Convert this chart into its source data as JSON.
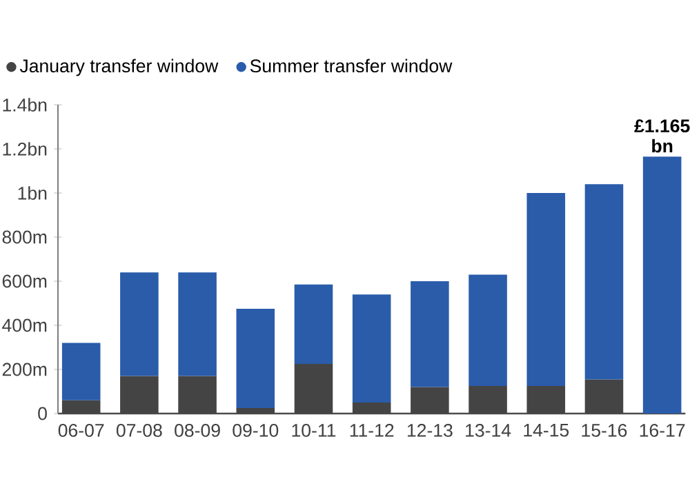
{
  "chart_data": {
    "type": "bar",
    "stacked": true,
    "categories": [
      "06-07",
      "07-08",
      "08-09",
      "09-10",
      "10-11",
      "11-12",
      "12-13",
      "13-14",
      "14-15",
      "15-16",
      "16-17"
    ],
    "series": [
      {
        "name": "January transfer window",
        "color": "#444444",
        "values": [
          60000000,
          170000000,
          170000000,
          25000000,
          225000000,
          50000000,
          120000000,
          125000000,
          125000000,
          155000000,
          null
        ]
      },
      {
        "name": "Summer transfer window",
        "color": "#2a5caa",
        "values": [
          260000000,
          470000000,
          470000000,
          450000000,
          360000000,
          490000000,
          480000000,
          505000000,
          875000000,
          885000000,
          1165000000
        ]
      }
    ],
    "ylim": [
      0,
      1400000000
    ],
    "yticks": [
      0,
      {
        "value": 200000000,
        "label": "200m"
      },
      {
        "value": 400000000,
        "label": "400m"
      },
      {
        "value": 600000000,
        "label": "600m"
      },
      {
        "value": 800000000,
        "label": "800m"
      },
      {
        "value": 1000000000,
        "label": "1bn"
      },
      {
        "value": 1200000000,
        "label": "1.2bn"
      },
      {
        "value": 1400000000,
        "label": "1.4bn"
      }
    ],
    "annotations": [
      {
        "text": "£1.165 bn",
        "x": "16-17",
        "y": 1165000000
      }
    ],
    "legend": "top left",
    "grid": false
  }
}
